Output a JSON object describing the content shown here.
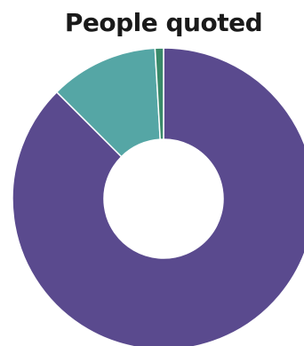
{
  "chart_data": {
    "type": "pie",
    "style": "donut",
    "title": "People quoted",
    "slices": [
      {
        "value": 87.5,
        "color": "#5a4a8e"
      },
      {
        "value": 11.6,
        "color": "#55a6a5"
      },
      {
        "value": 0.9,
        "color": "#3a8a6a"
      }
    ],
    "start_angle_deg": 0,
    "direction": "clockwise",
    "legend": "none"
  }
}
